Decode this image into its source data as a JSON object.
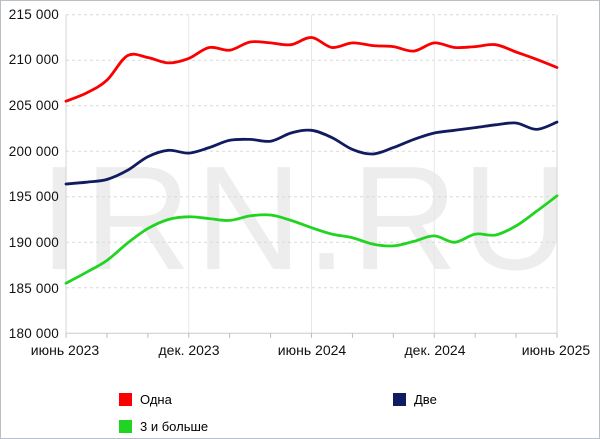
{
  "watermark": "IRN.RU",
  "chart_data": {
    "type": "line",
    "title": "",
    "ylim": [
      180000,
      215000
    ],
    "y_tick_step": 5000,
    "y_tick_labels": [
      "215 000",
      "210 000",
      "205 000",
      "200 000",
      "195 000",
      "190 000",
      "185 000",
      "180 000"
    ],
    "x_tick_labels": [
      "июнь 2023",
      "дек. 2023",
      "июнь 2024",
      "дек. 2024",
      "июнь 2025"
    ],
    "grid": "horizontal dashed lines every 5000; light vertical lines at Dec 2023, Jun 2024, Dec 2024; ticks every 2 months",
    "legend_position": "bottom",
    "x": [
      "2023-06",
      "2023-07",
      "2023-08",
      "2023-09",
      "2023-10",
      "2023-11",
      "2023-12",
      "2024-01",
      "2024-02",
      "2024-03",
      "2024-04",
      "2024-05",
      "2024-06",
      "2024-07",
      "2024-08",
      "2024-09",
      "2024-10",
      "2024-11",
      "2024-12",
      "2025-01",
      "2025-02",
      "2025-03",
      "2025-04",
      "2025-05",
      "2025-06"
    ],
    "series": [
      {
        "name": "Одна",
        "color": "#fa0000",
        "values": [
          205500,
          206400,
          207800,
          210500,
          210300,
          209700,
          210200,
          211400,
          211100,
          212000,
          211900,
          211700,
          212500,
          211400,
          211900,
          211600,
          211500,
          211000,
          211900,
          211400,
          211500,
          211700,
          210900,
          210100,
          209200
        ]
      },
      {
        "name": "Две",
        "color": "#111b60",
        "values": [
          196400,
          196600,
          196900,
          197900,
          199400,
          200100,
          199800,
          200400,
          201200,
          201300,
          201100,
          202000,
          202300,
          201500,
          200200,
          199700,
          200400,
          201300,
          202000,
          202300,
          202600,
          202900,
          203100,
          202400,
          203200
        ]
      },
      {
        "name": "3 и больше",
        "color": "#22d422",
        "values": [
          185500,
          186700,
          188000,
          189900,
          191500,
          192500,
          192800,
          192600,
          192400,
          192900,
          193000,
          192400,
          191600,
          190900,
          190500,
          189800,
          189600,
          190100,
          190700,
          190000,
          190900,
          190800,
          191800,
          193400,
          195100
        ]
      }
    ]
  }
}
